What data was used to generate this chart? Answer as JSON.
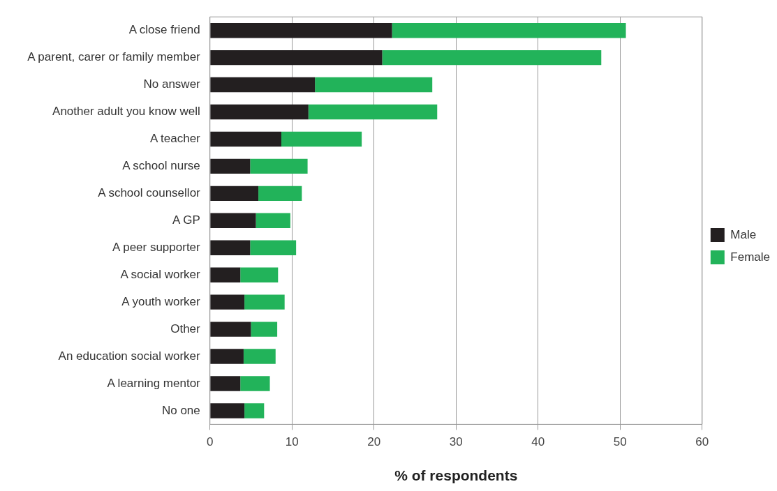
{
  "chart_data": {
    "type": "bar",
    "orientation": "horizontal",
    "stacked": true,
    "categories": [
      "A close friend",
      "A parent, carer or family member",
      "No answer",
      "Another adult you know well",
      "A teacher",
      "A school nurse",
      "A school counsellor",
      "A GP",
      "A peer supporter",
      "A social worker",
      "A youth worker",
      "Other",
      "An education social worker",
      "A learning mentor",
      "No one"
    ],
    "series": [
      {
        "name": "Male",
        "color": "#231f20",
        "values": [
          22.2,
          21.0,
          12.8,
          12.0,
          8.7,
          4.9,
          5.9,
          5.6,
          4.9,
          3.7,
          4.2,
          5.0,
          4.1,
          3.7,
          4.2
        ]
      },
      {
        "name": "Female",
        "color": "#22b35a",
        "values": [
          28.5,
          26.7,
          14.3,
          15.7,
          9.8,
          7.0,
          5.3,
          4.2,
          5.6,
          4.6,
          4.9,
          3.2,
          3.9,
          3.6,
          2.4
        ]
      }
    ],
    "xlabel": "% of respondents",
    "xlim": [
      0,
      60
    ],
    "xticks": [
      0,
      10,
      20,
      30,
      40,
      50,
      60
    ],
    "grid": "x",
    "legend": "right"
  }
}
